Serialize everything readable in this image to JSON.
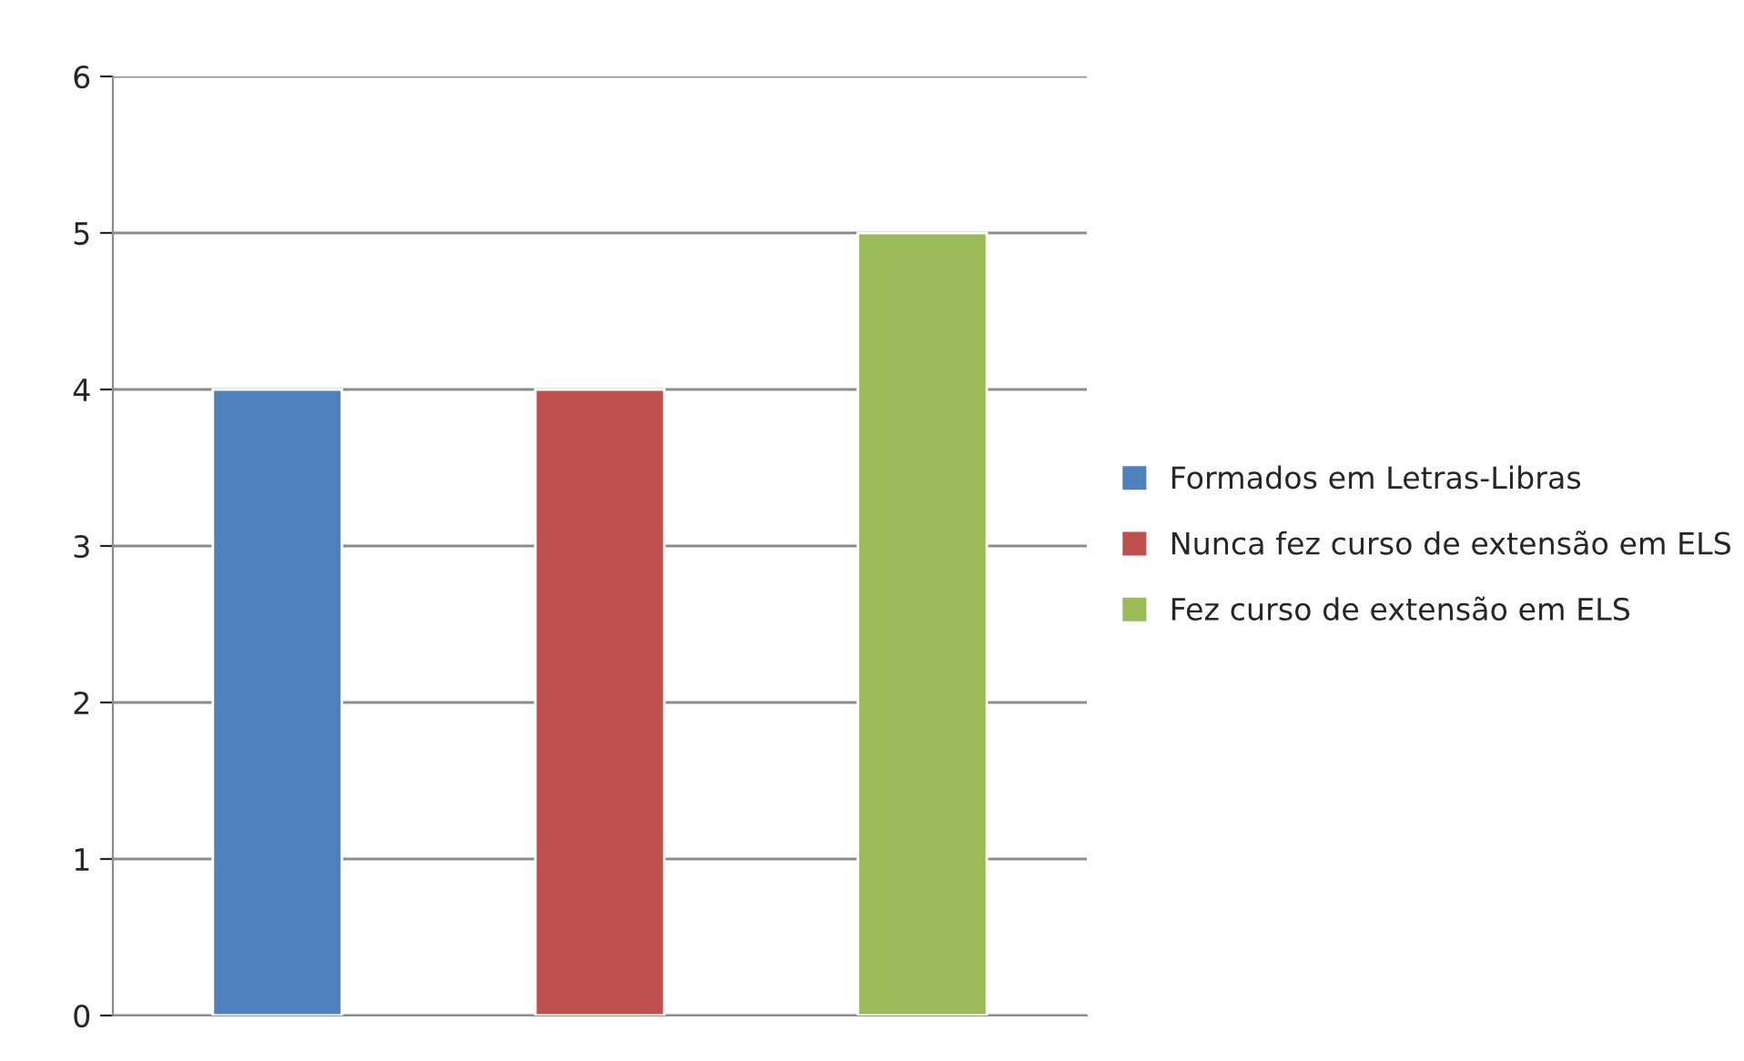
{
  "chart_data": {
    "type": "bar",
    "categories": [
      null
    ],
    "series": [
      {
        "name": "Formados em Letras-Libras",
        "color": "#4f81bd",
        "values": [
          4
        ]
      },
      {
        "name": "Nunca fez curso de extensão em ELS",
        "color": "#c0504d",
        "values": [
          4
        ]
      },
      {
        "name": "Fez curso de extensão em ELS",
        "color": "#9bbb59",
        "values": [
          5
        ]
      }
    ],
    "ylim": [
      0,
      6
    ],
    "yticks": [
      0,
      1,
      2,
      3,
      4,
      5,
      6
    ],
    "grid": "y",
    "legend": "right"
  }
}
